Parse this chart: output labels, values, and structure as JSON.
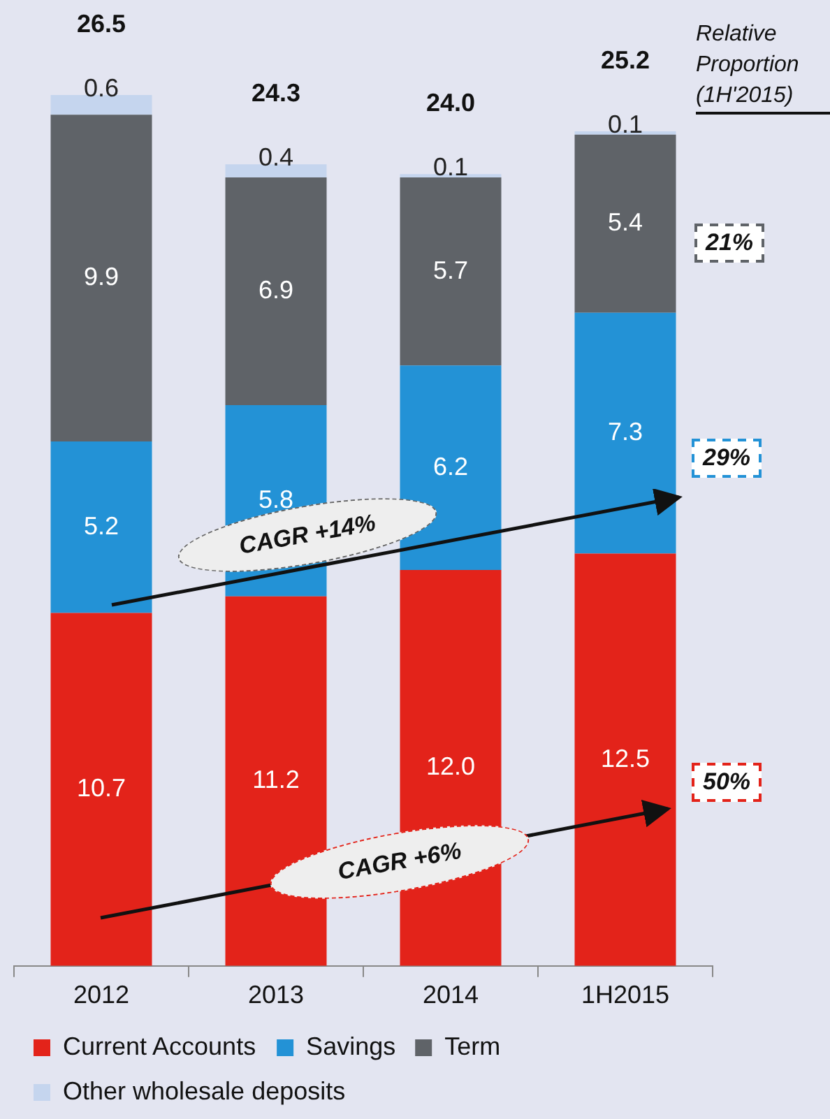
{
  "chart_data": {
    "type": "bar",
    "stacked": true,
    "categories": [
      "2012",
      "2013",
      "2014",
      "1H2015"
    ],
    "series": [
      {
        "name": "Current Accounts",
        "color": "#e3231a",
        "values": [
          10.7,
          11.2,
          12.0,
          12.5
        ],
        "value_labels": [
          "10.7",
          "11.2",
          "12.0",
          "12.5"
        ]
      },
      {
        "name": "Savings",
        "color": "#2392d6",
        "values": [
          5.2,
          5.8,
          6.2,
          7.3
        ],
        "value_labels": [
          "5.2",
          "5.8",
          "6.2",
          "7.3"
        ]
      },
      {
        "name": "Term",
        "color": "#5f6368",
        "values": [
          9.9,
          6.9,
          5.7,
          5.4
        ],
        "value_labels": [
          "9.9",
          "6.9",
          "5.7",
          "5.4"
        ]
      },
      {
        "name": "Other wholesale deposits",
        "color": "#c5d5ee",
        "values": [
          0.6,
          0.4,
          0.1,
          0.1
        ],
        "value_labels": [
          "0.6",
          "0.4",
          "0.1",
          "0.1"
        ]
      }
    ],
    "totals": [
      "26.5",
      "24.3",
      "24.0",
      "25.2"
    ],
    "legend": "bottom",
    "annotations": [
      "Relative Proportion (1H'2015)",
      "21%",
      "29%",
      "50%",
      "CAGR +14%",
      "CAGR +6%"
    ]
  }
}
